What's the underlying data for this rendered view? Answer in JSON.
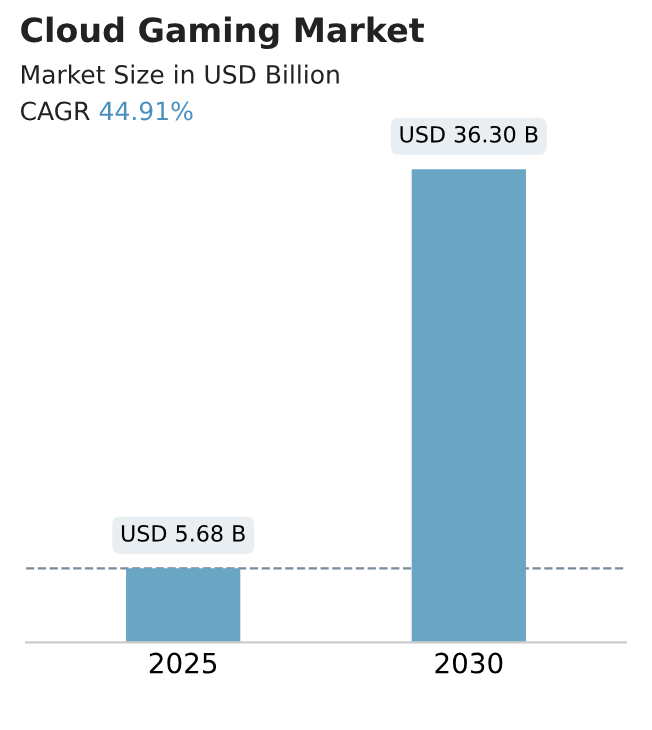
{
  "chart_data": {
    "type": "bar",
    "title": "Cloud Gaming Market",
    "subtitle": "Market Size in USD Billion",
    "annotations": [
      "CAGR",
      "44.91%"
    ],
    "categories": [
      "2025",
      "2030"
    ],
    "values": [
      5.68,
      36.3
    ],
    "color": "#6aa6c4",
    "value_labels": [
      "USD 5.68 B",
      "USD 36.30 B"
    ],
    "ref_lines": [
      {
        "axis": "y",
        "value": 5.68,
        "color": "#7a8a99",
        "line_style": "dashed"
      }
    ],
    "grid": false,
    "legend": false
  }
}
